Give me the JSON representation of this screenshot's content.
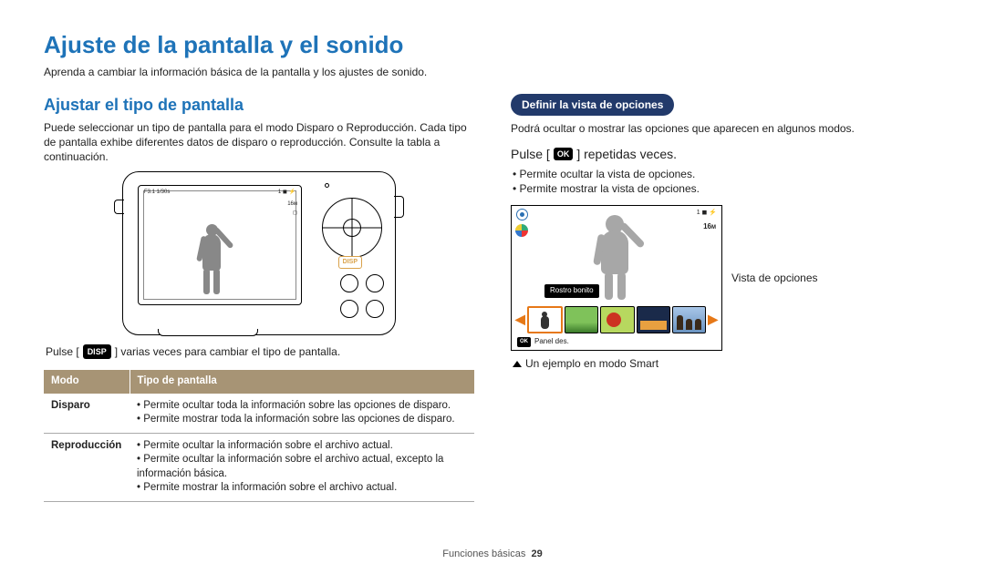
{
  "title": "Ajuste de la pantalla y el sonido",
  "intro": "Aprenda a cambiar la información básica de la pantalla y los ajustes de sonido.",
  "left": {
    "heading": "Ajustar el tipo de pantalla",
    "para": "Puede seleccionar un tipo de pantalla para el modo Disparo o Reproducción. Cada tipo de pantalla exhibe diferentes datos de disparo o reproducción. Consulte la tabla a continuación.",
    "screen_top_left": "F3.1 1/30s",
    "screen_top_right": "1 ◼ ⚡",
    "screen_side": "16ᴍ",
    "disp_label": "DISP",
    "press_prefix": "Pulse [",
    "press_key": "DISP",
    "press_suffix": "] varias veces para cambiar el tipo de pantalla.",
    "table": {
      "h1": "Modo",
      "h2": "Tipo de pantalla",
      "r1h": "Disparo",
      "r1b1": "Permite ocultar toda la información sobre las opciones de disparo.",
      "r1b2": "Permite mostrar toda la información sobre las opciones de disparo.",
      "r2h": "Reproducción",
      "r2b1": "Permite ocultar la información sobre el archivo actual.",
      "r2b2": "Permite ocultar la información sobre el archivo actual, excepto la información básica.",
      "r2b3": "Permite mostrar la información sobre el archivo actual."
    }
  },
  "right": {
    "pill": "Definir la vista de opciones",
    "para": "Podrá ocultar o mostrar las opciones que aparecen en algunos modos.",
    "press_prefix": "Pulse [",
    "press_key": "OK",
    "press_suffix": "] repetidas veces.",
    "b1": "Permite ocultar la vista de opciones.",
    "b2": "Permite mostrar la vista de opciones.",
    "pv_top_right": "1 ◼ ⚡",
    "pv_16": "16",
    "pv_16m": "M",
    "label_box": "Rostro bonito",
    "panel_ok": "OK",
    "panel_txt": "Panel des.",
    "caption_side": "Vista de opciones",
    "caption_below": "Un ejemplo en modo Smart"
  },
  "footer": {
    "section": "Funciones básicas",
    "page": "29"
  },
  "colors": {
    "heading": "#1e73b8",
    "table_header_bg": "#a79475",
    "pill_bg": "#223a6b",
    "accent_orange": "#e67817"
  }
}
